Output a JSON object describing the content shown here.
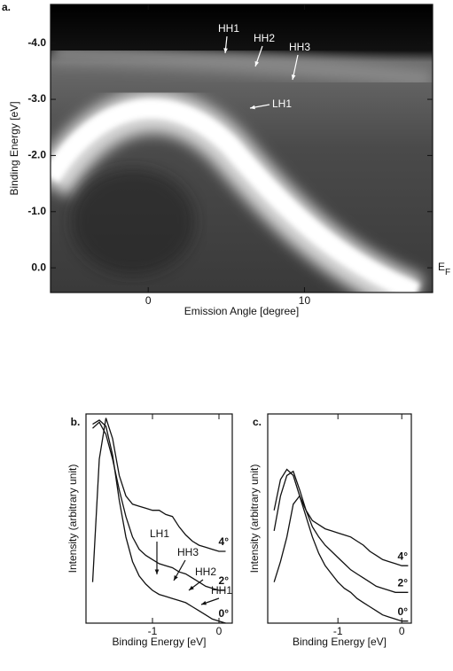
{
  "chart_data": [
    {
      "type": "image",
      "panel_label": "a.",
      "x_label": "Emission Angle [degree]",
      "y_label": "Binding Energy [eV]",
      "xlim": [
        -6.25,
        18.2
      ],
      "xticks": [
        0,
        10
      ],
      "ylim": [
        0.44,
        -4.69
      ],
      "yticks": [
        {
          "value": 0,
          "label": "0.0"
        },
        {
          "value": -1,
          "label": "-1.0"
        },
        {
          "value": -2,
          "label": "-2.0"
        },
        {
          "value": -3,
          "label": "-3.0"
        },
        {
          "value": -4,
          "label": "-4.0"
        }
      ],
      "annotations": [
        "HH1",
        "HH2",
        "HH3",
        "LH1"
      ],
      "ef_label": "E",
      "ef_subscript": "F"
    },
    {
      "type": "line",
      "panel_label": "b.",
      "x_label": "Binding Energy [eV]",
      "y_label": "Intensity (arbitrary unit)",
      "xlim": [
        -2.0,
        0.2
      ],
      "xticks": [
        -1,
        0
      ],
      "ylim": [
        0,
        1.02
      ],
      "color": "#111111",
      "annotations": [
        "LH1",
        "HH3",
        "HH2",
        "HH1"
      ],
      "x": [
        -1.9,
        -1.8,
        -1.7,
        -1.6,
        -1.5,
        -1.4,
        -1.3,
        -1.2,
        -1.1,
        -1.0,
        -0.9,
        -0.8,
        -0.7,
        -0.6,
        -0.5,
        -0.4,
        -0.3,
        -0.2,
        -0.1,
        0.0,
        0.1
      ],
      "series": [
        {
          "name": "4°",
          "values": [
            0.2,
            0.8,
            1.0,
            0.9,
            0.72,
            0.62,
            0.58,
            0.57,
            0.56,
            0.55,
            0.55,
            0.53,
            0.52,
            0.47,
            0.43,
            0.4,
            0.38,
            0.37,
            0.36,
            0.35,
            0.35
          ]
        },
        {
          "name": "2°",
          "values": [
            0.95,
            0.98,
            0.92,
            0.8,
            0.65,
            0.52,
            0.42,
            0.36,
            0.33,
            0.31,
            0.29,
            0.28,
            0.27,
            0.25,
            0.24,
            0.22,
            0.2,
            0.18,
            0.17,
            0.16,
            0.16
          ]
        },
        {
          "name": "0°",
          "values": [
            0.97,
            0.99,
            0.96,
            0.82,
            0.6,
            0.42,
            0.3,
            0.23,
            0.19,
            0.16,
            0.14,
            0.13,
            0.12,
            0.11,
            0.1,
            0.08,
            0.06,
            0.04,
            0.02,
            0.01,
            0.0
          ]
        }
      ]
    },
    {
      "type": "line",
      "panel_label": "c.",
      "x_label": "Binding Energy [eV]",
      "y_label": "Intensity (arbitrary unit)",
      "xlim": [
        -2.1,
        0.15
      ],
      "xticks": [
        -1,
        0
      ],
      "ylim": [
        0,
        1.02
      ],
      "color": "#111111",
      "x": [
        -2.0,
        -1.9,
        -1.8,
        -1.7,
        -1.6,
        -1.5,
        -1.4,
        -1.3,
        -1.2,
        -1.1,
        -1.0,
        -0.9,
        -0.8,
        -0.7,
        -0.6,
        -0.5,
        -0.4,
        -0.3,
        -0.2,
        -0.1,
        0.0,
        0.1
      ],
      "series": [
        {
          "name": "4°",
          "values": [
            0.55,
            0.7,
            0.75,
            0.72,
            0.62,
            0.55,
            0.5,
            0.48,
            0.46,
            0.45,
            0.44,
            0.43,
            0.42,
            0.4,
            0.38,
            0.35,
            0.33,
            0.31,
            0.3,
            0.29,
            0.28,
            0.28
          ]
        },
        {
          "name": "2°",
          "values": [
            0.45,
            0.62,
            0.72,
            0.74,
            0.65,
            0.55,
            0.47,
            0.42,
            0.38,
            0.35,
            0.32,
            0.29,
            0.26,
            0.24,
            0.22,
            0.2,
            0.18,
            0.17,
            0.16,
            0.15,
            0.15,
            0.15
          ]
        },
        {
          "name": "0°",
          "values": [
            0.2,
            0.3,
            0.42,
            0.58,
            0.62,
            0.52,
            0.42,
            0.34,
            0.28,
            0.24,
            0.2,
            0.17,
            0.15,
            0.12,
            0.1,
            0.08,
            0.06,
            0.04,
            0.03,
            0.02,
            0.01,
            0.01
          ]
        }
      ]
    }
  ]
}
